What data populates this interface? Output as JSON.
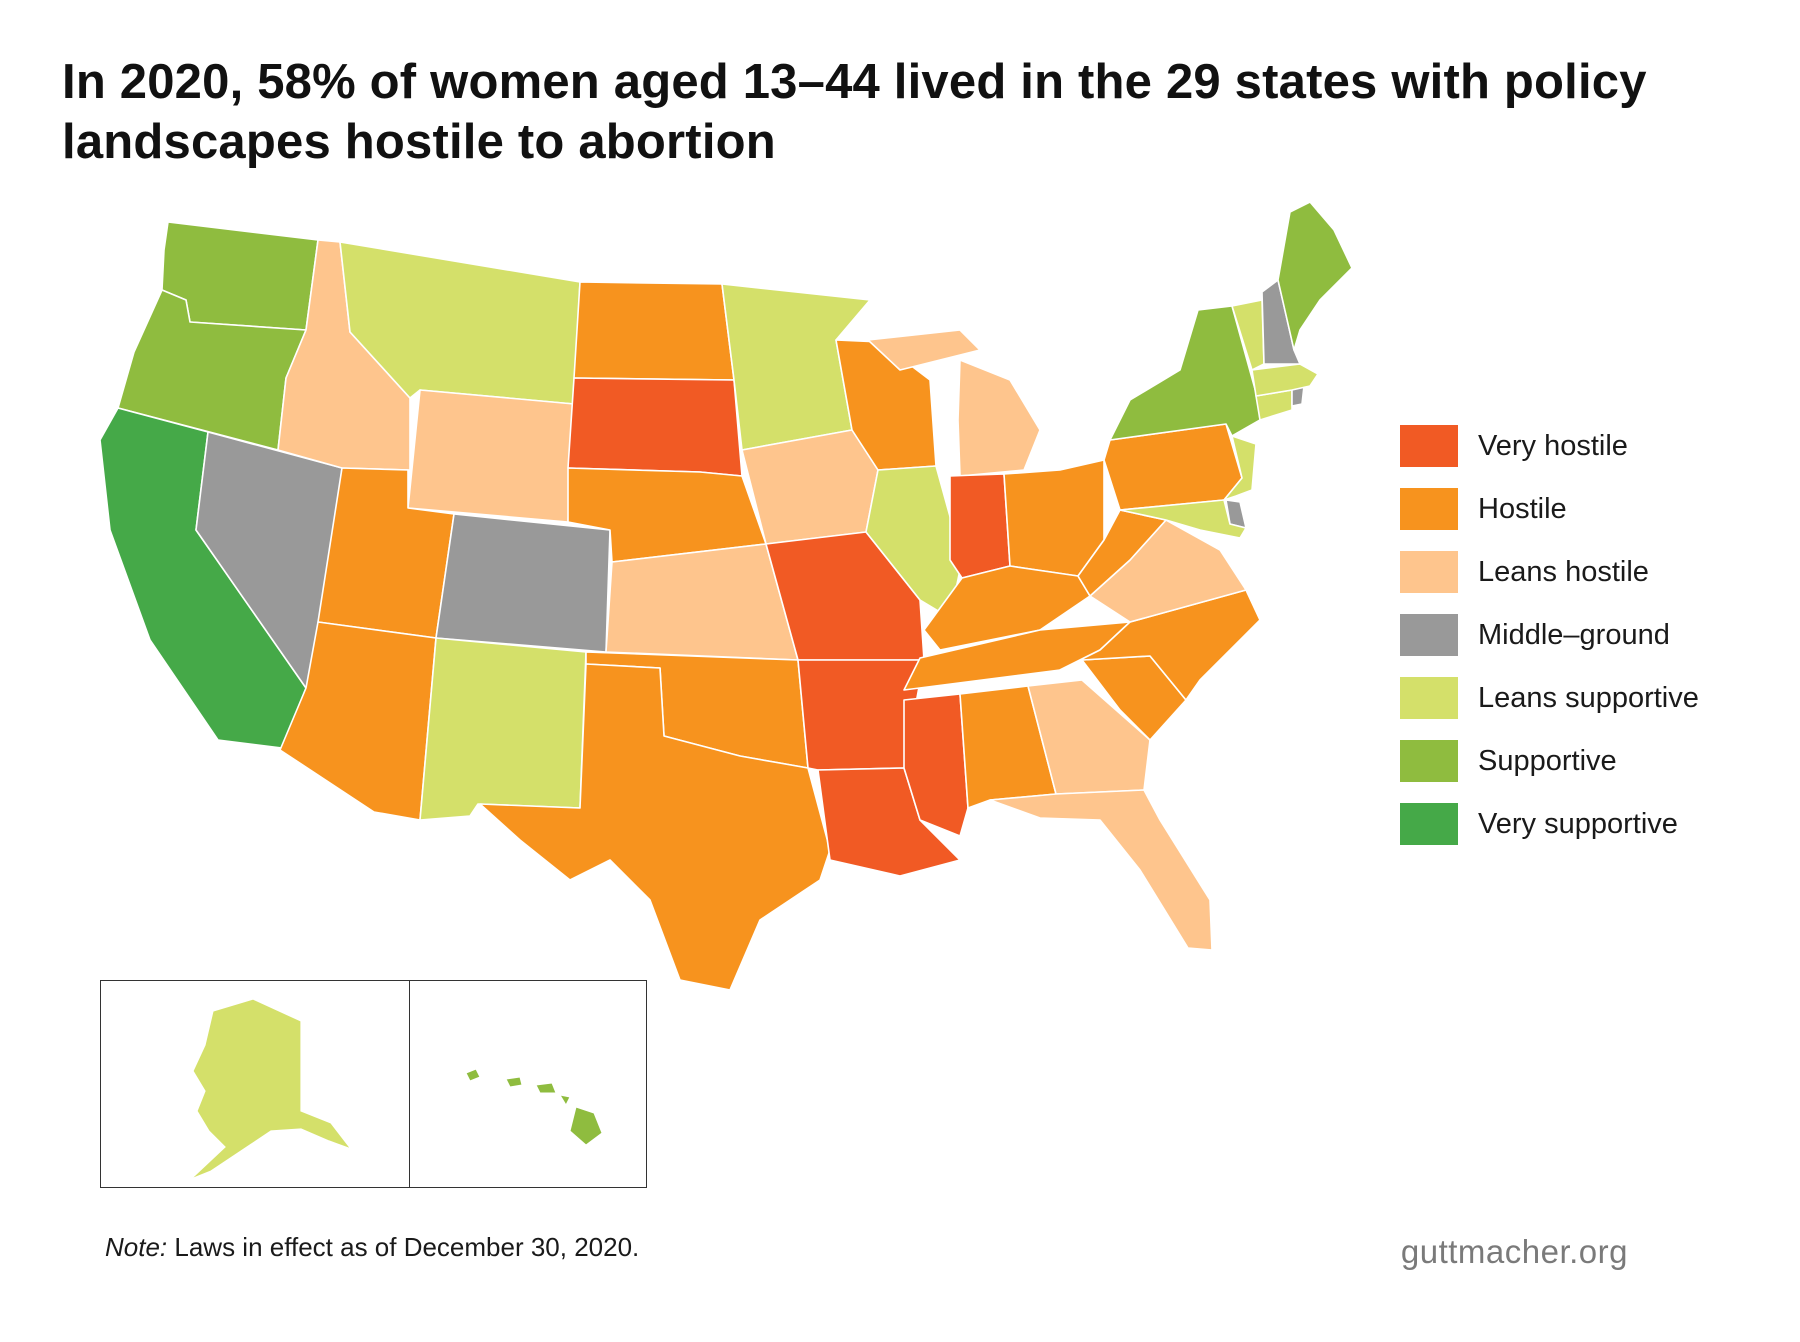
{
  "title": "In 2020, 58% of women aged 13–44 lived in the 29 states with policy landscapes hostile to abortion",
  "legend": [
    {
      "key": "very_hostile",
      "label": "Very hostile",
      "color": "#f15a24"
    },
    {
      "key": "hostile",
      "label": "Hostile",
      "color": "#f7931e"
    },
    {
      "key": "leans_hostile",
      "label": "Leans hostile",
      "color": "#fec58d"
    },
    {
      "key": "middle_ground",
      "label": "Middle–ground",
      "color": "#999999"
    },
    {
      "key": "leans_supportive",
      "label": "Leans supportive",
      "color": "#d4e06a"
    },
    {
      "key": "supportive",
      "label": "Supportive",
      "color": "#8fbc3f"
    },
    {
      "key": "very_supportive",
      "label": "Very supportive",
      "color": "#45a948"
    }
  ],
  "states": {
    "WA": "supportive",
    "OR": "supportive",
    "CA": "very_supportive",
    "NV": "middle_ground",
    "ID": "leans_hostile",
    "MT": "leans_supportive",
    "WY": "leans_hostile",
    "UT": "hostile",
    "CO": "middle_ground",
    "AZ": "hostile",
    "NM": "leans_supportive",
    "ND": "hostile",
    "SD": "very_hostile",
    "NE": "hostile",
    "KS": "leans_hostile",
    "OK": "hostile",
    "TX": "hostile",
    "MN": "leans_supportive",
    "IA": "leans_hostile",
    "MO": "very_hostile",
    "AR": "very_hostile",
    "LA": "very_hostile",
    "WI": "hostile",
    "IL": "leans_supportive",
    "MI": "leans_hostile",
    "IN": "very_hostile",
    "OH": "hostile",
    "KY": "hostile",
    "TN": "hostile",
    "MS": "very_hostile",
    "AL": "hostile",
    "GA": "leans_hostile",
    "FL": "leans_hostile",
    "SC": "hostile",
    "NC": "hostile",
    "VA": "leans_hostile",
    "WV": "hostile",
    "PA": "hostile",
    "NY": "supportive",
    "NJ": "leans_supportive",
    "DE": "middle_ground",
    "MD": "leans_supportive",
    "CT": "leans_supportive",
    "RI": "middle_ground",
    "MA": "leans_supportive",
    "VT": "leans_supportive",
    "NH": "middle_ground",
    "ME": "supportive",
    "AK": "leans_supportive",
    "HI": "supportive"
  },
  "note": {
    "label": "Note:",
    "text": " Laws in effect as of December 30, 2020."
  },
  "source": "guttmacher.org"
}
